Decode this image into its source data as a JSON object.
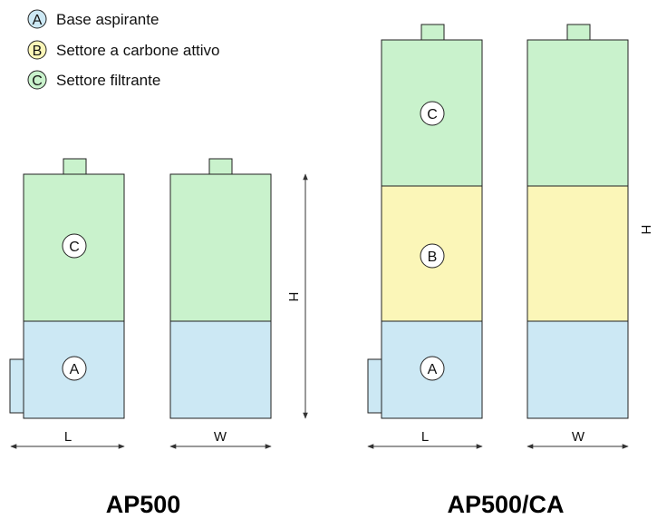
{
  "colors": {
    "base": "#cce8f4",
    "carbon": "#fbf6b8",
    "filter": "#c9f2cc"
  },
  "legend": [
    {
      "letter": "A",
      "text": "Base aspirante"
    },
    {
      "letter": "B",
      "text": "Settore a carbone attivo"
    },
    {
      "letter": "C",
      "text": "Settore filtrante"
    }
  ],
  "dimensions": {
    "length": "L",
    "width": "W",
    "height": "H"
  },
  "models": {
    "ap500": {
      "name": "AP500",
      "label_c": "C",
      "label_a": "A"
    },
    "ap500ca": {
      "name": "AP500/CA",
      "label_c": "C",
      "label_b": "B",
      "label_a": "A"
    }
  }
}
